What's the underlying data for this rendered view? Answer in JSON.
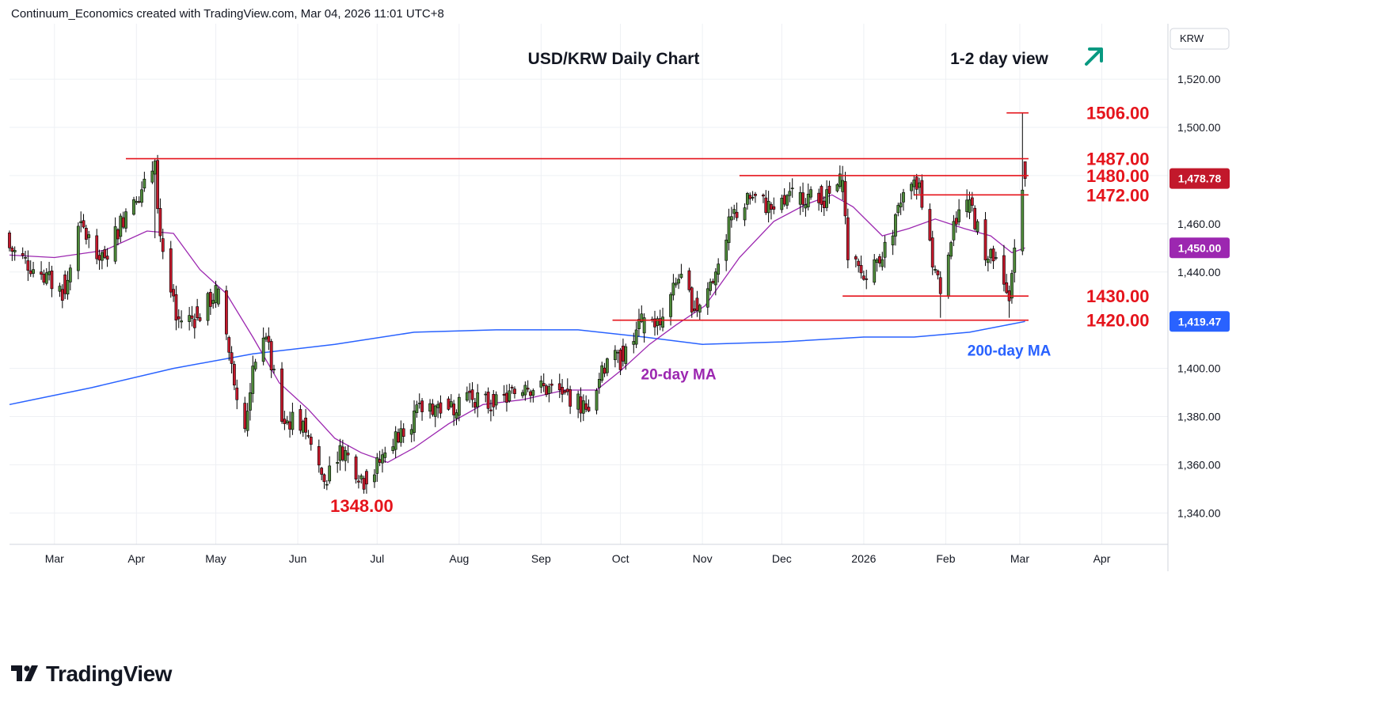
{
  "attribution": "Continuum_Economics created with TradingView.com, Mar 04, 2026 11:01 UTC+8",
  "brand": {
    "name": "TradingView",
    "logo_icon": "tradingview-logo-icon"
  },
  "colors": {
    "up": "#4e8a3a",
    "down": "#c2182b",
    "level": "#e5141c",
    "ma20": "#9c27b0",
    "ma200": "#2962ff",
    "arrow": "#089981",
    "grid": "#eef0f4",
    "text": "#131722"
  },
  "chart_data": {
    "type": "candlestick",
    "title": "USD/KRW Daily Chart",
    "subtitle": "1-2 day view",
    "view_direction": "up",
    "view_icon": "arrow-up-right-icon",
    "currency_label": "KRW",
    "y_axis": {
      "range": [
        1327,
        1543
      ],
      "ticks": [
        "1,520.00",
        "1,500.00",
        "1,480.00",
        "1,460.00",
        "1,440.00",
        "1,400.00",
        "1,380.00",
        "1,360.00",
        "1,340.00"
      ],
      "tick_values": [
        1520,
        1500,
        1480,
        1460,
        1440,
        1400,
        1380,
        1360,
        1340
      ]
    },
    "x_axis": {
      "range": [
        "2025-02-12",
        "2026-04-26"
      ],
      "labels": [
        "Mar",
        "Apr",
        "May",
        "Jun",
        "Jul",
        "Aug",
        "Sep",
        "Oct",
        "Nov",
        "Dec",
        "2026",
        "Feb",
        "Mar",
        "Apr"
      ],
      "label_dates": [
        "2025-03-01",
        "2025-04-01",
        "2025-05-01",
        "2025-06-01",
        "2025-07-01",
        "2025-08-01",
        "2025-09-01",
        "2025-10-01",
        "2025-11-01",
        "2025-12-01",
        "2026-01-01",
        "2026-02-01",
        "2026-03-01",
        "2026-04-01"
      ]
    },
    "grid": true,
    "price_badges": [
      {
        "text": "1,478.78",
        "value": 1478.78,
        "color": "#c2182b"
      },
      {
        "text": "1,450.00",
        "value": 1450.0,
        "color": "#9c27b0"
      },
      {
        "text": "1,419.47",
        "value": 1419.47,
        "color": "#2962ff"
      }
    ],
    "levels": [
      {
        "label": "1506.00",
        "value": 1506,
        "from": "2026-02-24",
        "to": "2026-03-04"
      },
      {
        "label": "1487.00",
        "value": 1487,
        "from": "2025-03-28",
        "to": "2026-03-04"
      },
      {
        "label": "1480.00",
        "value": 1480,
        "from": "2025-11-15",
        "to": "2026-03-04"
      },
      {
        "label": "1472.00",
        "value": 1472,
        "from": "2026-01-20",
        "to": "2026-03-04"
      },
      {
        "label": "1430.00",
        "value": 1430,
        "from": "2025-12-24",
        "to": "2026-03-04"
      },
      {
        "label": "1420.00",
        "value": 1420,
        "from": "2025-09-28",
        "to": "2026-03-04"
      }
    ],
    "low_label": {
      "text": "1348.00",
      "date": "2025-06-27",
      "value": 1348
    },
    "annotations": [
      {
        "text": "20-day MA",
        "date": "2025-10-23",
        "value": 1398,
        "color": "#9c27b0"
      },
      {
        "text": "200-day MA",
        "date": "2026-02-25",
        "value": 1408,
        "color": "#2962ff"
      }
    ],
    "anchors": [
      [
        "2025-02-12",
        1450,
        "d"
      ],
      [
        "2025-02-24",
        1439,
        "d"
      ],
      [
        "2025-03-05",
        1431,
        "d"
      ],
      [
        "2025-03-10",
        1459,
        "u"
      ],
      [
        "2025-03-20",
        1446,
        "d"
      ],
      [
        "2025-03-28",
        1465,
        "u"
      ],
      [
        "2025-04-02",
        1469,
        "d"
      ],
      [
        "2025-04-08",
        1486,
        "u"
      ],
      [
        "2025-04-10",
        1455,
        "d"
      ],
      [
        "2025-04-16",
        1420,
        "d"
      ],
      [
        "2025-04-24",
        1421,
        "d"
      ],
      [
        "2025-05-02",
        1433,
        "u"
      ],
      [
        "2025-05-07",
        1402,
        "d"
      ],
      [
        "2025-05-12",
        1375,
        "d"
      ],
      [
        "2025-05-15",
        1401,
        "u"
      ],
      [
        "2025-05-20",
        1413,
        "u"
      ],
      [
        "2025-05-26",
        1378,
        "d"
      ],
      [
        "2025-06-03",
        1378,
        "u"
      ],
      [
        "2025-06-11",
        1353,
        "d"
      ],
      [
        "2025-06-17",
        1368,
        "u"
      ],
      [
        "2025-06-27",
        1352,
        "d"
      ],
      [
        "2025-07-04",
        1365,
        "u"
      ],
      [
        "2025-07-10",
        1375,
        "u"
      ],
      [
        "2025-07-20",
        1385,
        "u"
      ],
      [
        "2025-07-28",
        1383,
        "d"
      ],
      [
        "2025-08-04",
        1390,
        "u"
      ],
      [
        "2025-08-14",
        1384,
        "d"
      ],
      [
        "2025-08-26",
        1393,
        "u"
      ],
      [
        "2025-09-10",
        1390,
        "d"
      ],
      [
        "2025-09-18",
        1383,
        "d"
      ],
      [
        "2025-09-26",
        1404,
        "u"
      ],
      [
        "2025-10-02",
        1403,
        "d"
      ],
      [
        "2025-10-10",
        1421,
        "u"
      ],
      [
        "2025-10-16",
        1418,
        "d"
      ],
      [
        "2025-10-23",
        1437,
        "u"
      ],
      [
        "2025-10-30",
        1424,
        "d"
      ],
      [
        "2025-11-06",
        1440,
        "u"
      ],
      [
        "2025-11-12",
        1463,
        "u"
      ],
      [
        "2025-11-20",
        1471,
        "u"
      ],
      [
        "2025-11-28",
        1466,
        "d"
      ],
      [
        "2025-12-08",
        1473,
        "u"
      ],
      [
        "2025-12-16",
        1468,
        "d"
      ],
      [
        "2025-12-24",
        1478,
        "u"
      ],
      [
        "2025-12-26",
        1445,
        "d"
      ],
      [
        "2026-01-02",
        1437,
        "d"
      ],
      [
        "2026-01-12",
        1455,
        "u"
      ],
      [
        "2026-01-16",
        1473,
        "u"
      ],
      [
        "2026-01-22",
        1477,
        "u"
      ],
      [
        "2026-01-24",
        1459,
        "d"
      ],
      [
        "2026-01-30",
        1431,
        "d"
      ],
      [
        "2026-02-04",
        1461,
        "u"
      ],
      [
        "2026-02-10",
        1470,
        "u"
      ],
      [
        "2026-02-16",
        1445,
        "d"
      ],
      [
        "2026-02-20",
        1446,
        "u"
      ],
      [
        "2026-02-25",
        1428,
        "d"
      ],
      [
        "2026-02-27",
        1450,
        "u"
      ],
      [
        "2026-03-02",
        1474,
        "u"
      ],
      [
        "2026-03-03",
        1478.78,
        "d"
      ]
    ],
    "special_candles": {
      "2025-04-08": {
        "high": 1487,
        "low": 1454
      },
      "2025-06-27": {
        "low": 1348
      },
      "2026-03-02": {
        "high": 1506,
        "low": 1447
      },
      "2026-03-03": {
        "high": 1485
      },
      "2025-12-24": {
        "high": 1484
      },
      "2026-02-25": {
        "low": 1421
      },
      "2026-01-30": {
        "low": 1421
      }
    },
    "ma20_points": [
      [
        "2025-02-12",
        1447
      ],
      [
        "2025-03-01",
        1446
      ],
      [
        "2025-03-20",
        1449
      ],
      [
        "2025-04-05",
        1457
      ],
      [
        "2025-04-15",
        1456
      ],
      [
        "2025-04-25",
        1441
      ],
      [
        "2025-05-05",
        1431
      ],
      [
        "2025-05-15",
        1413
      ],
      [
        "2025-05-25",
        1394
      ],
      [
        "2025-06-05",
        1383
      ],
      [
        "2025-06-15",
        1371
      ],
      [
        "2025-06-25",
        1365
      ],
      [
        "2025-07-05",
        1361
      ],
      [
        "2025-07-15",
        1367
      ],
      [
        "2025-07-28",
        1377
      ],
      [
        "2025-08-10",
        1385
      ],
      [
        "2025-08-25",
        1387
      ],
      [
        "2025-09-10",
        1391
      ],
      [
        "2025-09-22",
        1391
      ],
      [
        "2025-10-01",
        1399
      ],
      [
        "2025-10-12",
        1410
      ],
      [
        "2025-10-22",
        1418
      ],
      [
        "2025-11-02",
        1426
      ],
      [
        "2025-11-15",
        1446
      ],
      [
        "2025-11-28",
        1461
      ],
      [
        "2025-12-10",
        1468
      ],
      [
        "2025-12-20",
        1472
      ],
      [
        "2025-12-28",
        1467
      ],
      [
        "2026-01-08",
        1455
      ],
      [
        "2026-01-18",
        1458
      ],
      [
        "2026-01-28",
        1462
      ],
      [
        "2026-02-08",
        1458
      ],
      [
        "2026-02-18",
        1455
      ],
      [
        "2026-02-26",
        1448
      ],
      [
        "2026-03-03",
        1450
      ]
    ],
    "ma200_points": [
      [
        "2025-02-12",
        1385
      ],
      [
        "2025-03-15",
        1392
      ],
      [
        "2025-04-15",
        1400
      ],
      [
        "2025-05-15",
        1406
      ],
      [
        "2025-06-15",
        1410
      ],
      [
        "2025-07-15",
        1415
      ],
      [
        "2025-08-15",
        1416
      ],
      [
        "2025-09-15",
        1416
      ],
      [
        "2025-10-10",
        1413
      ],
      [
        "2025-11-01",
        1410
      ],
      [
        "2025-12-01",
        1411
      ],
      [
        "2026-01-01",
        1413
      ],
      [
        "2026-01-20",
        1413
      ],
      [
        "2026-02-10",
        1415
      ],
      [
        "2026-03-03",
        1419.47
      ]
    ]
  }
}
